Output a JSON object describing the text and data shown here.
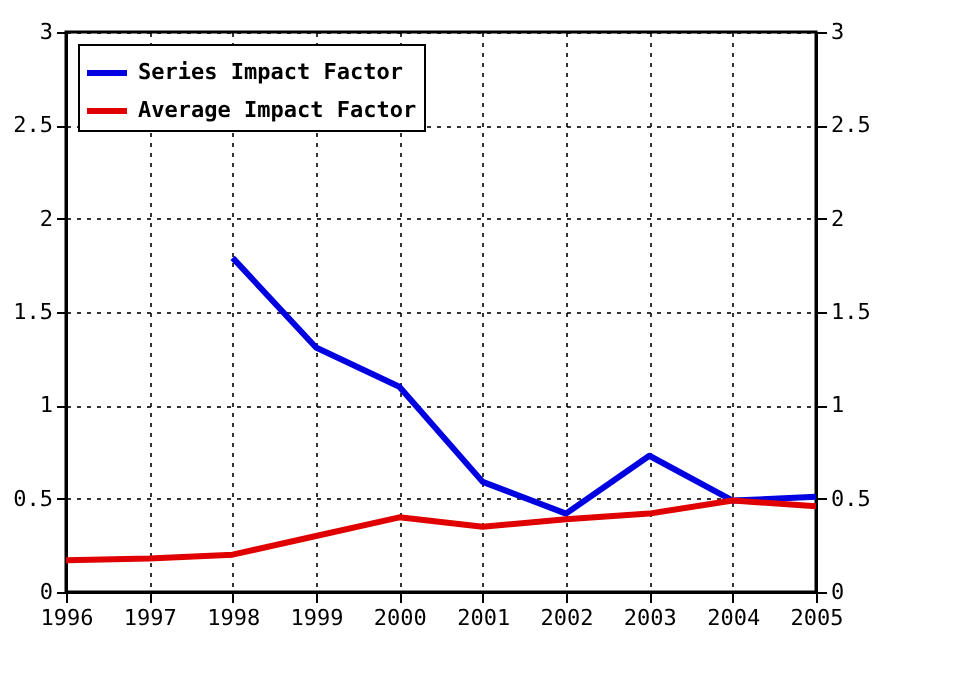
{
  "chart_data": {
    "type": "line",
    "x": [
      1996,
      1997,
      1998,
      1999,
      2000,
      2001,
      2002,
      2003,
      2004,
      2005
    ],
    "series": [
      {
        "name": "Series Impact Factor",
        "color": "#0000e0",
        "values": [
          null,
          null,
          1.79,
          1.31,
          1.1,
          0.59,
          0.42,
          0.73,
          0.49,
          0.51
        ]
      },
      {
        "name": "Average Impact Factor",
        "color": "#e00000",
        "values": [
          0.17,
          0.18,
          0.2,
          0.3,
          0.4,
          0.35,
          0.39,
          0.42,
          0.49,
          0.46
        ]
      }
    ],
    "xlim": [
      1996,
      2005
    ],
    "xticks": [
      1996,
      1997,
      1998,
      1999,
      2000,
      2001,
      2002,
      2003,
      2004,
      2005
    ],
    "ylim": [
      0,
      3
    ],
    "yticks": [
      0,
      0.5,
      1,
      1.5,
      2,
      2.5,
      3
    ],
    "y2lim": [
      0,
      3
    ],
    "y2ticks": [
      0,
      0.5,
      1,
      1.5,
      2,
      2.5,
      3
    ],
    "grid": true,
    "legend": "top left",
    "marker": "none",
    "line_style": "solid"
  }
}
